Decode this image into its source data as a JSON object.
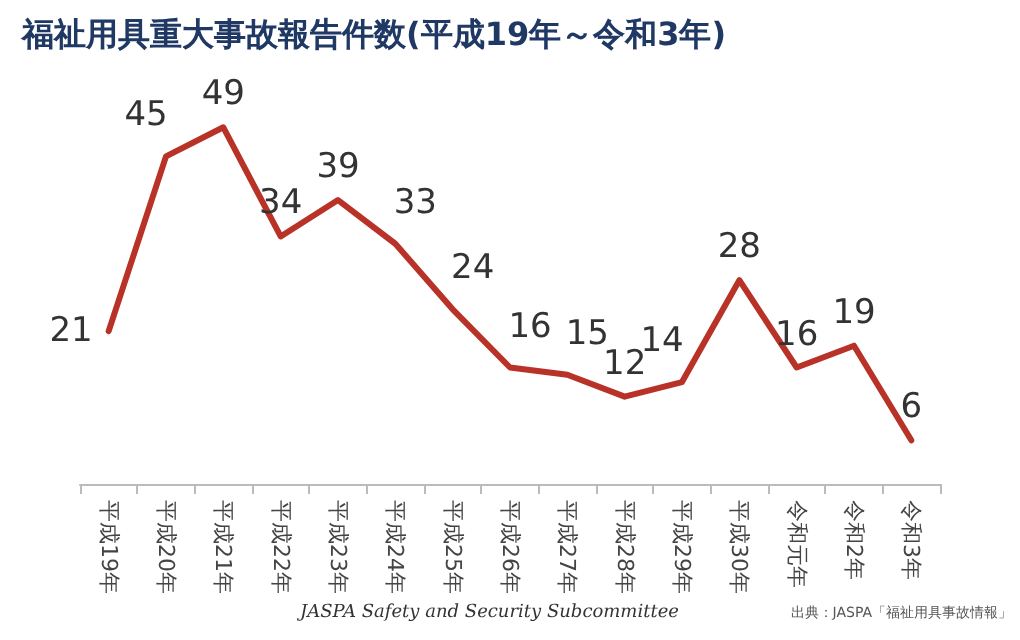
{
  "chart_data": {
    "type": "line",
    "title": "福祉用具重大事故報告件数(平成19年～令和3年)",
    "categories": [
      "平成19年",
      "平成20年",
      "平成21年",
      "平成22年",
      "平成23年",
      "平成24年",
      "平成25年",
      "平成26年",
      "平成27年",
      "平成28年",
      "平成29年",
      "平成30年",
      "令和元年",
      "令和2年",
      "令和3年"
    ],
    "series": [
      {
        "color": "#b83227",
        "values": [
          21,
          45,
          49,
          34,
          39,
          33,
          24,
          16,
          15,
          12,
          14,
          28,
          16,
          19,
          6
        ]
      }
    ],
    "data_labels": true,
    "marker": "none",
    "line_style": "solid",
    "grid": false,
    "annotations": [
      "JASPA Safety and Security Subcommittee",
      "出典：JASPA「福祉用具事故情報」"
    ]
  }
}
